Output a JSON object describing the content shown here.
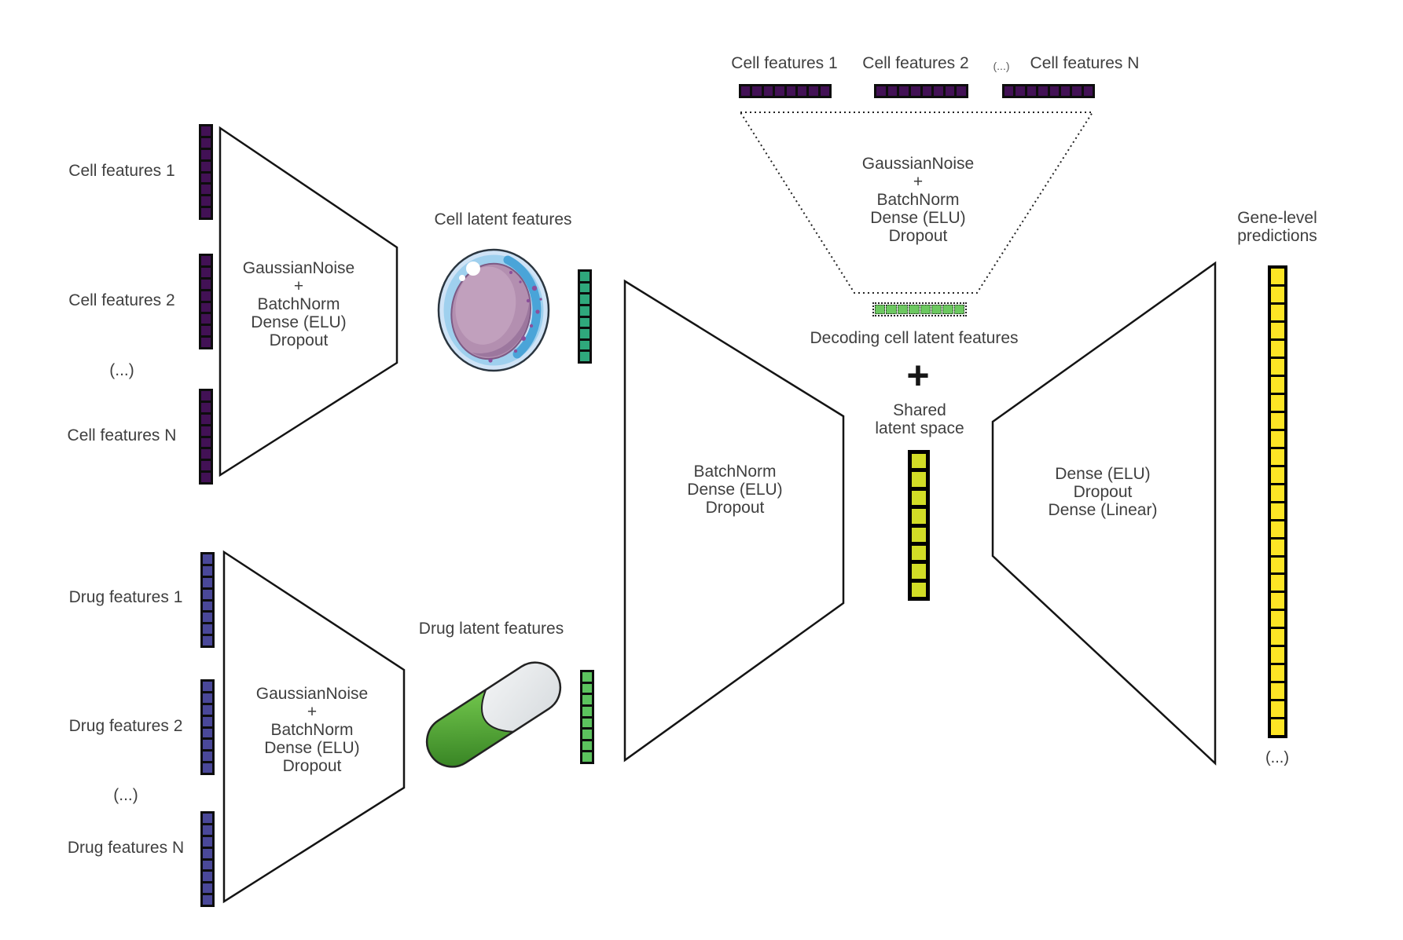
{
  "cell_branch": {
    "input_labels": [
      "Cell features 1",
      "Cell features 2",
      "(...)",
      "Cell features N"
    ],
    "encoder_lines": [
      "GaussianNoise",
      "+",
      "BatchNorm",
      "Dense (ELU)",
      "Dropout"
    ],
    "latent_label": "Cell latent features",
    "input_bar": {
      "segments": 8,
      "color": "#421155"
    },
    "latent_bar": {
      "segments": 8,
      "color": "#2fa87c"
    }
  },
  "drug_branch": {
    "input_labels": [
      "Drug features 1",
      "Drug features 2",
      "(...)",
      "Drug features N"
    ],
    "encoder_lines": [
      "GaussianNoise",
      "+",
      "BatchNorm",
      "Dense (ELU)",
      "Dropout"
    ],
    "latent_label": "Drug latent features",
    "input_bar": {
      "segments": 8,
      "color": "#4a4899"
    },
    "latent_bar": {
      "segments": 8,
      "color": "#5cc35e"
    }
  },
  "merge_encoder": {
    "lines": [
      "BatchNorm",
      "Dense (ELU)",
      "Dropout"
    ]
  },
  "cell_decoder": {
    "input_labels": [
      "Cell features 1",
      "Cell features 2",
      "(...)",
      "Cell features N"
    ],
    "funnel_lines": [
      "GaussianNoise",
      "+",
      "BatchNorm",
      "Dense (ELU)",
      "Dropout"
    ],
    "caption": "Decoding cell latent features",
    "input_bar_1": {
      "segments": 8,
      "color": "#421155"
    },
    "input_bar_2": {
      "segments": 8,
      "color": "#421155"
    },
    "input_bar_3": {
      "segments": 8,
      "color": "#421155"
    },
    "latent_bar": {
      "segments": 8,
      "color": "#6cc860"
    }
  },
  "fusion": {
    "plus": "+",
    "label_lines": [
      "Shared",
      "latent space"
    ],
    "bar": {
      "segments": 8,
      "color": "#d2dd26"
    }
  },
  "output_decoder": {
    "lines": [
      "Dense (ELU)",
      "Dropout",
      "Dense (Linear)"
    ]
  },
  "predictions": {
    "label_lines": [
      "Gene-level",
      "predictions"
    ],
    "bar": {
      "segments": 26,
      "color": "#fde525"
    },
    "ellipsis": "(...)"
  }
}
